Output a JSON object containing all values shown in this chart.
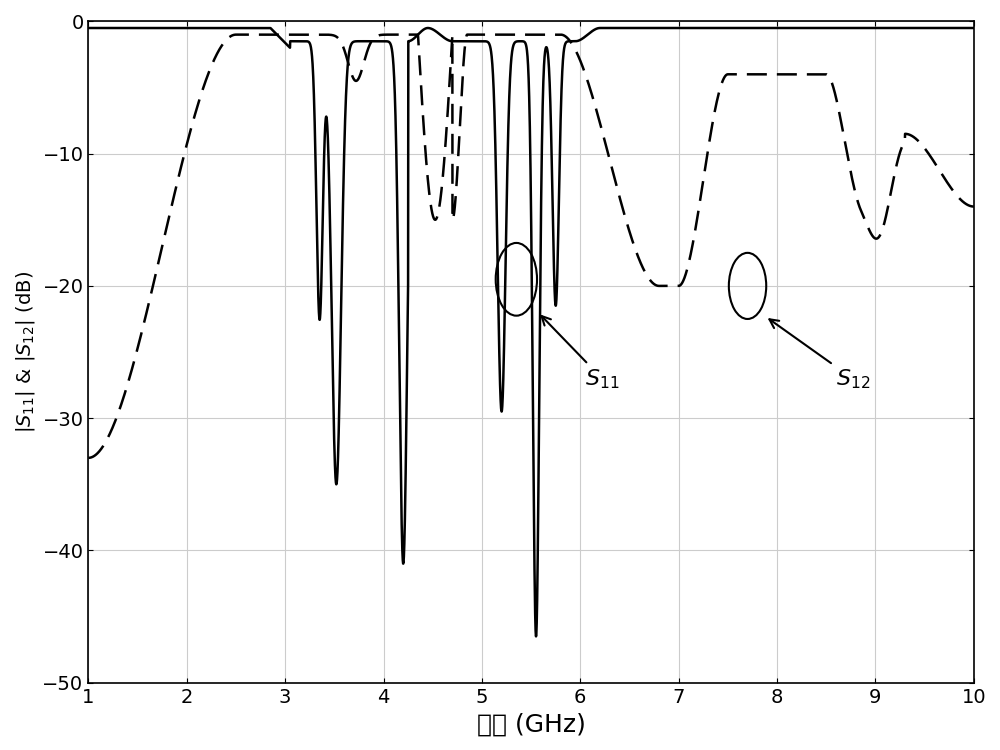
{
  "xlim": [
    1,
    10
  ],
  "ylim": [
    -50,
    0
  ],
  "xticks": [
    1,
    2,
    3,
    4,
    5,
    6,
    7,
    8,
    9,
    10
  ],
  "yticks": [
    0,
    -10,
    -20,
    -30,
    -40,
    -50
  ],
  "xlabel": "频率 (GHz)",
  "xlabel_fontsize": 18,
  "ylabel_fontsize": 14,
  "tick_fontsize": 14,
  "background_color": "#ffffff",
  "grid_color": "#cccccc",
  "line_color": "#000000"
}
